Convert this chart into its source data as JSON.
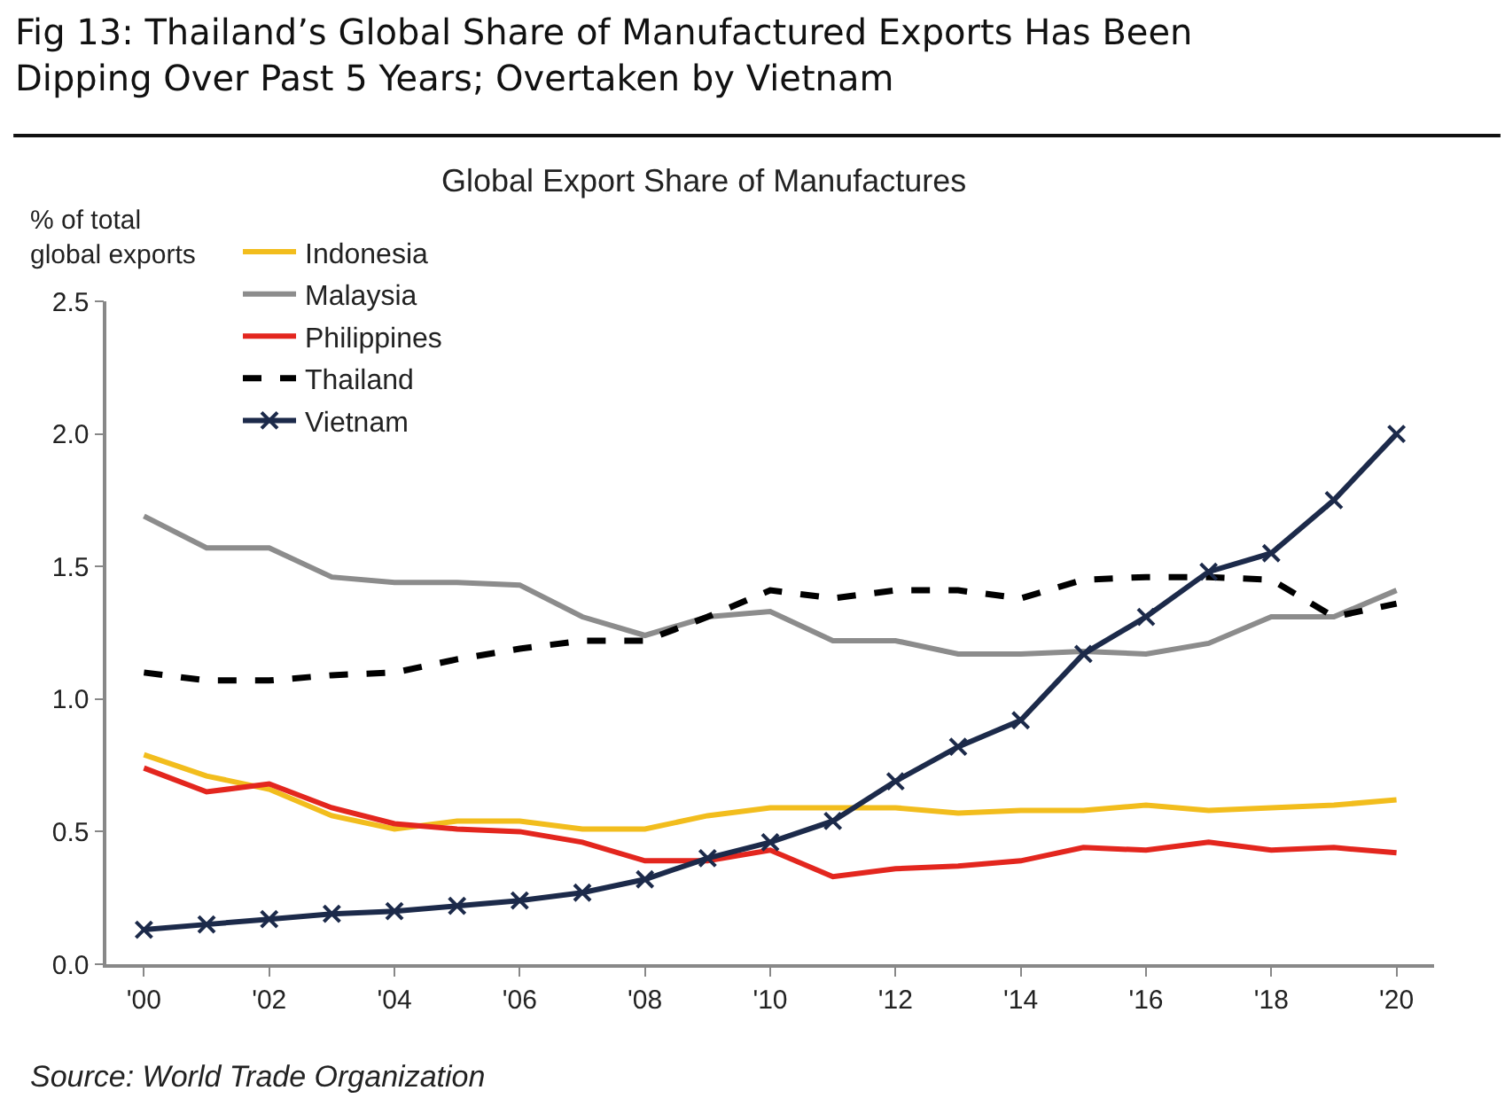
{
  "chart_data": {
    "type": "line",
    "title": "Fig 13: Thailand’s Global Share of Manufactured Exports Has Been Dipping Over Past 5 Years; Overtaken by Vietnam",
    "subtitle": "Global Export Share of Manufactures",
    "ylabel": "% of total global exports",
    "categories": [
      "'00",
      null,
      "'02",
      null,
      "'04",
      null,
      "'06",
      null,
      "'08",
      null,
      "'10",
      null,
      "'12",
      null,
      "'14",
      null,
      "'16",
      null,
      "'18",
      null,
      "'20"
    ],
    "series": [
      {
        "name": "Indonesia",
        "color": "#f2bd1d",
        "marker": "none",
        "line_style": "solid",
        "values": [
          0.79,
          0.71,
          0.66,
          0.56,
          0.51,
          0.54,
          0.54,
          0.51,
          0.51,
          0.56,
          0.59,
          0.59,
          0.59,
          0.57,
          0.58,
          0.58,
          0.6,
          0.58,
          0.59,
          0.6,
          0.62
        ]
      },
      {
        "name": "Malaysia",
        "color": "#8c8c8c",
        "marker": "none",
        "line_style": "solid",
        "values": [
          1.69,
          1.57,
          1.57,
          1.46,
          1.44,
          1.44,
          1.43,
          1.31,
          1.24,
          1.31,
          1.33,
          1.22,
          1.22,
          1.17,
          1.17,
          1.18,
          1.17,
          1.21,
          1.31,
          1.31,
          1.41
        ]
      },
      {
        "name": "Philippines",
        "color": "#e3261e",
        "marker": "none",
        "line_style": "solid",
        "values": [
          0.74,
          0.65,
          0.68,
          0.59,
          0.53,
          0.51,
          0.5,
          0.46,
          0.39,
          0.39,
          0.43,
          0.33,
          0.36,
          0.37,
          0.39,
          0.44,
          0.43,
          0.46,
          0.43,
          0.44,
          0.42
        ]
      },
      {
        "name": "Thailand",
        "color": "#000000",
        "marker": "none",
        "line_style": "dashed",
        "values": [
          1.1,
          1.07,
          1.07,
          1.09,
          1.1,
          1.15,
          1.19,
          1.22,
          1.22,
          1.31,
          1.41,
          1.38,
          1.41,
          1.41,
          1.38,
          1.45,
          1.46,
          1.46,
          1.45,
          1.31,
          1.36
        ]
      },
      {
        "name": "Vietnam",
        "color": "#1c2a4a",
        "marker": "cross",
        "line_style": "solid",
        "values": [
          0.13,
          0.15,
          0.17,
          0.19,
          0.2,
          0.22,
          0.24,
          0.27,
          0.32,
          0.4,
          0.46,
          0.54,
          0.69,
          0.82,
          0.92,
          1.17,
          1.31,
          1.48,
          1.55,
          1.75,
          2.0
        ]
      }
    ],
    "ylim": [
      0,
      2.5
    ],
    "yticks": [
      {
        "value": 0,
        "label": "0.0"
      },
      {
        "value": 0.5,
        "label": "0.5"
      },
      {
        "value": 1,
        "label": "1.0"
      },
      {
        "value": 1.5,
        "label": "1.5"
      },
      {
        "value": 2,
        "label": "2.0"
      },
      {
        "value": 2.5,
        "label": "2.5"
      }
    ],
    "grid": false,
    "legend": "top",
    "annotations": [
      "Source: World Trade Organization"
    ]
  }
}
